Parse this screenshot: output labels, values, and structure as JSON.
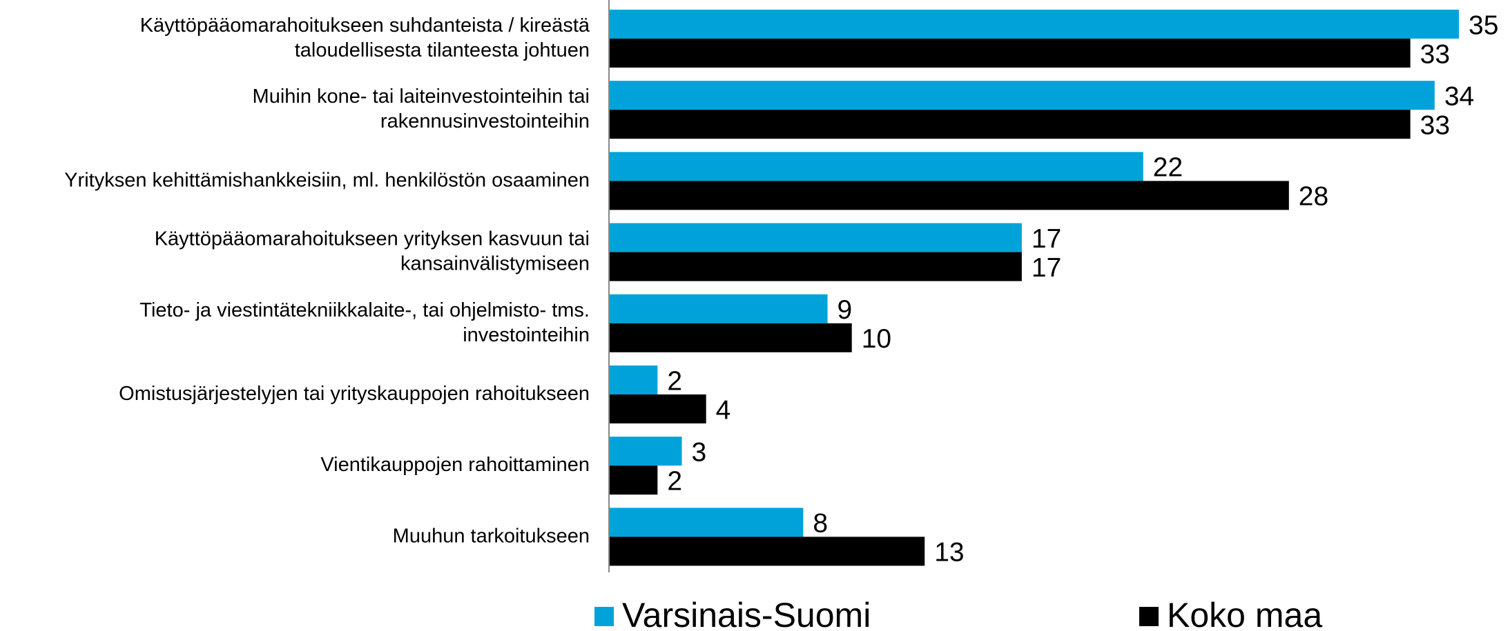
{
  "chart_data": {
    "type": "bar",
    "orientation": "horizontal",
    "categories": [
      [
        "Käyttöpääomarahoitukseen suhdanteista / kireästä",
        "taloudellisesta tilanteesta johtuen"
      ],
      [
        "Muihin kone- tai laiteinvestointeihin tai",
        "rakennusinvestointeihin"
      ],
      [
        "Yrityksen kehittämishankkeisiin, ml. henkilöstön osaaminen"
      ],
      [
        "Käyttöpääomarahoitukseen yrityksen kasvuun tai",
        "kansainvälistymiseen"
      ],
      [
        "Tieto- ja viestintätekniikkalaite-, tai ohjelmisto- tms.",
        "investointeihin"
      ],
      [
        "Omistusjärjestelyjen tai yrityskauppojen rahoitukseen"
      ],
      [
        "Vientikauppojen rahoittaminen"
      ],
      [
        "Muuhun tarkoitukseen"
      ]
    ],
    "series": [
      {
        "name": "Varsinais-Suomi",
        "color": "#00a3d9",
        "values": [
          35,
          34,
          22,
          17,
          9,
          2,
          3,
          8
        ]
      },
      {
        "name": "Koko maa",
        "color": "#000000",
        "values": [
          33,
          33,
          28,
          17,
          10,
          4,
          2,
          13
        ]
      }
    ],
    "xlim": [
      0,
      35
    ]
  }
}
